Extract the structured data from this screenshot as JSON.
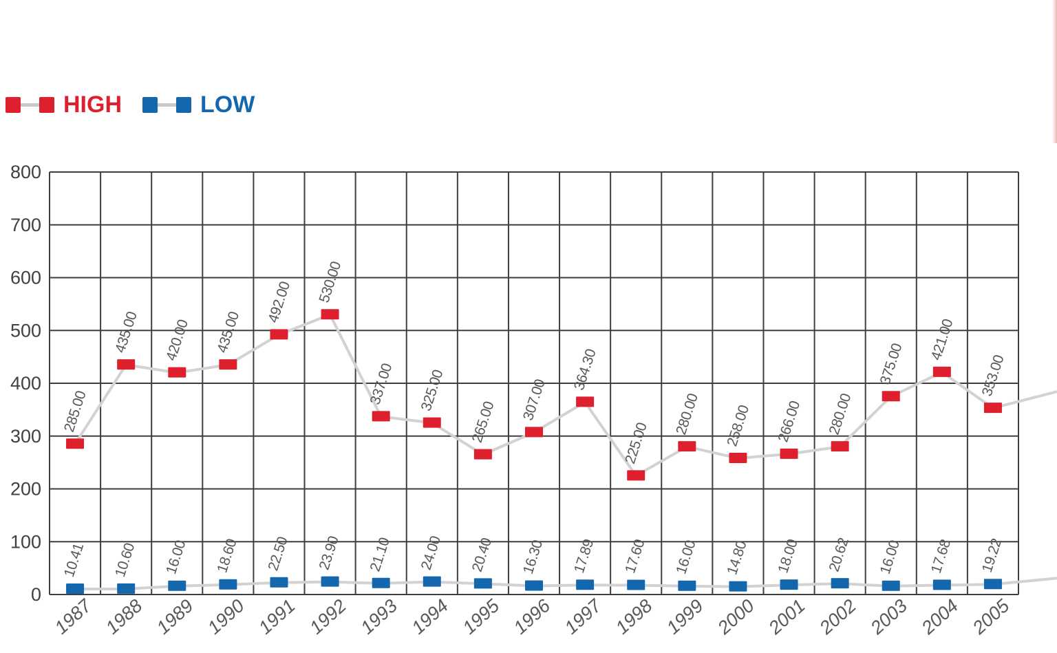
{
  "legend": {
    "items": [
      {
        "label": "HIGH",
        "color": "#de1f2e"
      },
      {
        "label": "LOW",
        "color": "#1467ad"
      }
    ]
  },
  "chart_data": {
    "type": "line",
    "title": "",
    "xlabel": "",
    "ylabel": "",
    "x": [
      "1987",
      "1988",
      "1989",
      "1990",
      "1991",
      "1992",
      "1993",
      "1994",
      "1995",
      "1996",
      "1997",
      "1998",
      "1999",
      "2000",
      "2001",
      "2002",
      "2003",
      "2004",
      "2005"
    ],
    "series": [
      {
        "name": "HIGH",
        "marker_color": "#de1f2e",
        "values": [
          285.0,
          435.0,
          420.0,
          435.0,
          492.0,
          530.0,
          337.0,
          325.0,
          265.0,
          307.0,
          364.3,
          225.0,
          280.0,
          258.0,
          266.0,
          280.0,
          375.0,
          421.0,
          353.0
        ]
      },
      {
        "name": "LOW",
        "marker_color": "#1467ad",
        "values": [
          10.41,
          10.6,
          16.0,
          18.6,
          22.5,
          23.9,
          21.1,
          24.0,
          20.4,
          16.3,
          17.89,
          17.6,
          16.0,
          14.8,
          18.0,
          20.62,
          16.0,
          17.68,
          19.22
        ]
      }
    ],
    "ylim": [
      0,
      800
    ],
    "y_ticks": [
      0,
      100,
      200,
      300,
      400,
      500,
      600,
      700,
      800
    ],
    "grid": true,
    "legend_position": "top-left",
    "line_color": "#d2d2d4",
    "grid_color": "#3e3e40",
    "value_label_color": "#58595b",
    "tick_label_color": "#414042",
    "value_label_format": "0.00",
    "marker_shape": "square"
  }
}
